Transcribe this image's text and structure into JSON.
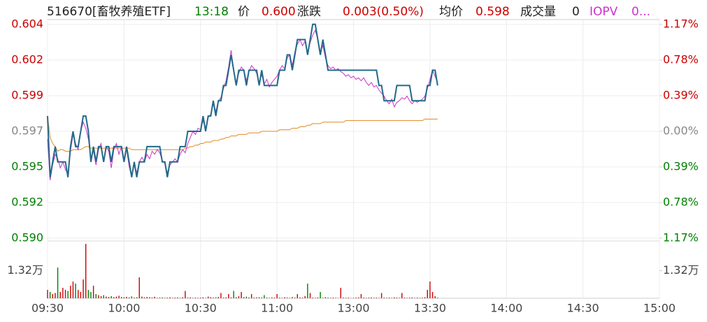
{
  "chart_data": {
    "type": "line",
    "header": {
      "code_name": "516670[畜牧养殖ETF]",
      "time": "13:18",
      "price": "0.600",
      "change_label": "涨跌",
      "change": "0.003(0.50%)",
      "avg": "0.598",
      "volume_label": "成交量",
      "volume": "0",
      "iopv": "0..."
    },
    "grid": true,
    "up_color": "#cc0000",
    "down_color": "#008000",
    "flat_color": "#888888",
    "xlim": [
      0,
      240
    ],
    "xticks": [
      {
        "value": 0,
        "label": "09:30"
      },
      {
        "value": 30,
        "label": "10:00"
      },
      {
        "value": 60,
        "label": "10:30"
      },
      {
        "value": 90,
        "label": "11:00"
      },
      {
        "value": 120,
        "label": "13:00"
      },
      {
        "value": 150,
        "label": "13:30"
      },
      {
        "value": 180,
        "label": "14:00"
      },
      {
        "value": 210,
        "label": "14:30"
      },
      {
        "value": 240,
        "label": "15:00"
      }
    ],
    "ylim": [
      0.59001,
      0.60399
    ],
    "yticks": [
      {
        "value": 0.60399,
        "label": "0.604"
      },
      {
        "value": 0.60166,
        "label": "0.602"
      },
      {
        "value": 0.59933,
        "label": "0.599"
      },
      {
        "value": 0.597,
        "label": "0.597"
      },
      {
        "value": 0.59467,
        "label": "0.595"
      },
      {
        "value": 0.59234,
        "label": "0.592"
      },
      {
        "value": 0.59001,
        "label": "0.590"
      }
    ],
    "y2lim": [
      -1.17,
      1.17
    ],
    "y2ticks": [
      {
        "value": 1.17,
        "label": "1.17%"
      },
      {
        "value": 0.78,
        "label": "0.78%"
      },
      {
        "value": 0.39,
        "label": "0.39%"
      },
      {
        "value": 0,
        "label": "0.00%"
      },
      {
        "value": -0.39,
        "label": "0.39%"
      },
      {
        "value": -0.78,
        "label": "0.78%"
      },
      {
        "value": -1.17,
        "label": "1.17%"
      }
    ],
    "x": [
      0,
      1,
      2,
      3,
      4,
      5,
      6,
      7,
      8,
      9,
      10,
      11,
      12,
      13,
      14,
      15,
      16,
      17,
      18,
      19,
      20,
      21,
      22,
      23,
      24,
      25,
      26,
      27,
      28,
      29,
      30,
      31,
      32,
      33,
      34,
      35,
      36,
      37,
      38,
      39,
      40,
      41,
      42,
      43,
      44,
      45,
      46,
      47,
      48,
      49,
      50,
      51,
      52,
      53,
      54,
      55,
      56,
      57,
      58,
      59,
      60,
      61,
      62,
      63,
      64,
      65,
      66,
      67,
      68,
      69,
      70,
      71,
      72,
      73,
      74,
      75,
      76,
      77,
      78,
      79,
      80,
      81,
      82,
      83,
      84,
      85,
      86,
      87,
      88,
      89,
      90,
      91,
      92,
      93,
      94,
      95,
      96,
      97,
      98,
      99,
      100,
      101,
      102,
      103,
      104,
      105,
      106,
      107,
      108,
      109,
      110,
      111,
      112,
      113,
      114,
      115,
      116,
      117,
      118,
      119,
      120,
      121,
      122,
      123,
      124,
      125,
      126,
      127,
      128,
      129,
      130,
      131,
      132,
      133,
      134,
      135,
      136,
      137,
      138,
      139,
      140,
      141,
      142,
      143,
      144,
      145,
      146,
      147,
      148,
      149,
      150,
      151,
      152,
      153
    ],
    "series": [
      {
        "name": "均价",
        "color": "#e08a1e",
        "values": [
          0.598,
          0.5966,
          0.5962,
          0.596,
          0.5957,
          0.5958,
          0.5958,
          0.5957,
          0.5957,
          0.5957,
          0.5958,
          0.5958,
          0.5958,
          0.5958,
          0.5959,
          0.596,
          0.596,
          0.5959,
          0.5959,
          0.5959,
          0.5959,
          0.5959,
          0.5959,
          0.5959,
          0.5959,
          0.5959,
          0.5959,
          0.5959,
          0.5959,
          0.5959,
          0.5959,
          0.5959,
          0.5959,
          0.5958,
          0.5958,
          0.5958,
          0.5958,
          0.5958,
          0.5958,
          0.5958,
          0.5958,
          0.5958,
          0.5958,
          0.5958,
          0.5958,
          0.5958,
          0.5958,
          0.5958,
          0.5958,
          0.5958,
          0.5958,
          0.5958,
          0.5958,
          0.5958,
          0.5959,
          0.5959,
          0.596,
          0.596,
          0.5961,
          0.5961,
          0.5962,
          0.5962,
          0.5963,
          0.5963,
          0.5963,
          0.5964,
          0.5964,
          0.5964,
          0.5965,
          0.5965,
          0.5966,
          0.5966,
          0.5967,
          0.5967,
          0.5967,
          0.5968,
          0.5968,
          0.5968,
          0.5968,
          0.5969,
          0.5969,
          0.5969,
          0.5969,
          0.5969,
          0.597,
          0.597,
          0.597,
          0.597,
          0.597,
          0.597,
          0.597,
          0.5971,
          0.5971,
          0.5971,
          0.5971,
          0.5971,
          0.5972,
          0.5972,
          0.5972,
          0.5973,
          0.5973,
          0.5973,
          0.5974,
          0.5974,
          0.5975,
          0.5975,
          0.5975,
          0.5975,
          0.5976,
          0.5976,
          0.5976,
          0.5976,
          0.5976,
          0.5976,
          0.5976,
          0.5976,
          0.5976,
          0.5977,
          0.5977,
          0.5977,
          0.5977,
          0.5977,
          0.5977,
          0.5977,
          0.5977,
          0.5977,
          0.5977,
          0.5977,
          0.5977,
          0.5977,
          0.5977,
          0.5977,
          0.5977,
          0.5977,
          0.5977,
          0.5977,
          0.5977,
          0.5977,
          0.5977,
          0.5977,
          0.5977,
          0.5977,
          0.5977,
          0.5977,
          0.5977,
          0.5977,
          0.5977,
          0.5977,
          0.5978,
          0.5978,
          0.5978,
          0.5978,
          0.5978,
          0.5978
        ]
      },
      {
        "name": "IOPV",
        "color": "#cc33cc",
        "values": [
          0.5965,
          0.5938,
          0.5948,
          0.5955,
          0.5952,
          0.5946,
          0.595,
          0.5945,
          0.5942,
          0.5957,
          0.5968,
          0.5962,
          0.5958,
          0.597,
          0.5976,
          0.5972,
          0.5965,
          0.5953,
          0.5957,
          0.5948,
          0.5958,
          0.5962,
          0.595,
          0.596,
          0.5957,
          0.5946,
          0.5958,
          0.5962,
          0.5955,
          0.596,
          0.5952,
          0.5958,
          0.5947,
          0.594,
          0.5948,
          0.5943,
          0.595,
          0.5953,
          0.595,
          0.5955,
          0.5952,
          0.5957,
          0.5955,
          0.5958,
          0.5956,
          0.5951,
          0.5949,
          0.5943,
          0.5948,
          0.595,
          0.5952,
          0.595,
          0.5955,
          0.5958,
          0.5956,
          0.5962,
          0.5966,
          0.597,
          0.5968,
          0.5972,
          0.5971,
          0.5977,
          0.5972,
          0.5979,
          0.5981,
          0.5988,
          0.5983,
          0.599,
          0.5992,
          0.5998,
          0.6003,
          0.6012,
          0.6023,
          0.601,
          0.6002,
          0.6008,
          0.6012,
          0.601,
          0.6003,
          0.6009,
          0.6013,
          0.6011,
          0.6008,
          0.6002,
          0.6007,
          0.6001,
          0.6004,
          0.5999,
          0.6002,
          0.6004,
          0.6006,
          0.601,
          0.6013,
          0.6011,
          0.6018,
          0.602,
          0.6013,
          0.6022,
          0.6027,
          0.603,
          0.6026,
          0.6029,
          0.6021,
          0.6028,
          0.6033,
          0.6036,
          0.603,
          0.6022,
          0.6026,
          0.6018,
          0.6013,
          0.6011,
          0.6012,
          0.601,
          0.6011,
          0.6009,
          0.6008,
          0.6006,
          0.6007,
          0.6005,
          0.6006,
          0.6004,
          0.6005,
          0.6003,
          0.6005,
          0.6002,
          0.6,
          0.6002,
          0.5999,
          0.6,
          0.5997,
          0.5995,
          0.5993,
          0.599,
          0.5988,
          0.5991,
          0.5986,
          0.5989,
          0.599,
          0.5992,
          0.5991,
          0.5993,
          0.599,
          0.5988,
          0.599,
          0.5989,
          0.599,
          0.5991,
          0.5993,
          0.5998,
          0.6004,
          0.601,
          0.6006,
          0.6002
        ]
      },
      {
        "name": "价",
        "color": "#23698a",
        "values": [
          0.598,
          0.594,
          0.595,
          0.596,
          0.595,
          0.595,
          0.595,
          0.595,
          0.594,
          0.596,
          0.597,
          0.596,
          0.596,
          0.597,
          0.598,
          0.598,
          0.597,
          0.595,
          0.596,
          0.595,
          0.596,
          0.596,
          0.595,
          0.596,
          0.596,
          0.595,
          0.596,
          0.596,
          0.596,
          0.596,
          0.595,
          0.596,
          0.595,
          0.594,
          0.595,
          0.594,
          0.595,
          0.595,
          0.595,
          0.596,
          0.596,
          0.596,
          0.596,
          0.596,
          0.596,
          0.595,
          0.595,
          0.594,
          0.595,
          0.595,
          0.595,
          0.595,
          0.596,
          0.596,
          0.596,
          0.597,
          0.597,
          0.597,
          0.597,
          0.597,
          0.597,
          0.598,
          0.597,
          0.598,
          0.598,
          0.599,
          0.598,
          0.599,
          0.599,
          0.6,
          0.6,
          0.601,
          0.602,
          0.601,
          0.6,
          0.601,
          0.601,
          0.601,
          0.6,
          0.601,
          0.601,
          0.601,
          0.601,
          0.6,
          0.601,
          0.6,
          0.6,
          0.6,
          0.6,
          0.6,
          0.6,
          0.601,
          0.601,
          0.601,
          0.602,
          0.602,
          0.601,
          0.602,
          0.603,
          0.603,
          0.603,
          0.603,
          0.602,
          0.603,
          0.604,
          0.604,
          0.603,
          0.602,
          0.603,
          0.602,
          0.601,
          0.601,
          0.601,
          0.601,
          0.601,
          0.601,
          0.601,
          0.601,
          0.601,
          0.601,
          0.601,
          0.601,
          0.601,
          0.601,
          0.601,
          0.601,
          0.601,
          0.601,
          0.601,
          0.601,
          0.6,
          0.6,
          0.599,
          0.599,
          0.599,
          0.599,
          0.599,
          0.6,
          0.6,
          0.6,
          0.6,
          0.6,
          0.6,
          0.599,
          0.599,
          0.599,
          0.599,
          0.599,
          0.599,
          0.6,
          0.6,
          0.601,
          0.601,
          0.6
        ]
      }
    ],
    "volume": {
      "ylim": [
        0,
        26400
      ],
      "yticks": [
        {
          "value": 13200,
          "label": "1.32万"
        }
      ],
      "values": [
        4000,
        3000,
        2000,
        2500,
        14700,
        3000,
        5000,
        4000,
        3500,
        6000,
        8000,
        7000,
        4000,
        3000,
        9000,
        26000,
        4000,
        3000,
        6000,
        2000,
        1500,
        1000,
        1500,
        800,
        600,
        1000,
        500,
        800,
        1200,
        600,
        500,
        700,
        400,
        900,
        300,
        500,
        10000,
        800,
        400,
        600,
        500,
        300,
        700,
        200,
        300,
        400,
        200,
        300,
        500,
        200,
        300,
        400,
        200,
        500,
        3500,
        300,
        400,
        200,
        300,
        200,
        300,
        400,
        200,
        800,
        500,
        300,
        400,
        600,
        2500,
        300,
        400,
        2000,
        400,
        3500,
        500,
        1000,
        3000,
        500,
        800,
        400,
        2000,
        300,
        400,
        500,
        300,
        1500,
        300,
        200,
        400,
        300,
        2000,
        300,
        200,
        500,
        300,
        200,
        600,
        300,
        2000,
        400,
        300,
        1000,
        7000,
        2500,
        300,
        200,
        400,
        3000,
        200,
        500,
        300,
        200,
        300,
        200,
        100,
        5000,
        300,
        200,
        300,
        100,
        200,
        300,
        400,
        2000,
        300,
        200,
        300,
        400,
        200,
        300,
        200,
        2500,
        300,
        200,
        300,
        200,
        400,
        300,
        200,
        2500,
        300,
        200,
        300,
        400,
        200,
        300,
        200,
        300,
        500,
        4000,
        8000,
        3000,
        1000,
        300
      ]
    }
  }
}
